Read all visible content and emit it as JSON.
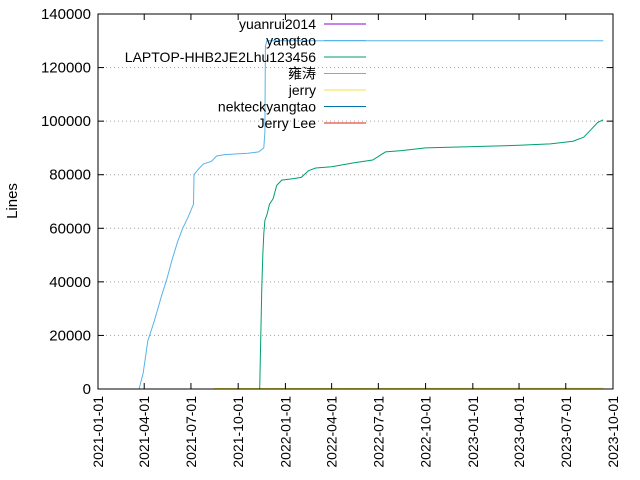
{
  "chart_data": {
    "type": "line",
    "title": "",
    "xlabel": "",
    "ylabel": "Lines",
    "xlim": [
      "2021-01-01",
      "2023-10-01"
    ],
    "ylim": [
      0,
      140000
    ],
    "y_ticks": [
      0,
      20000,
      40000,
      60000,
      80000,
      100000,
      120000,
      140000
    ],
    "x_ticks": [
      "2021-01-01",
      "2021-04-01",
      "2021-07-01",
      "2021-10-01",
      "2022-01-01",
      "2022-04-01",
      "2022-07-01",
      "2022-10-01",
      "2023-01-01",
      "2023-04-01",
      "2023-07-01",
      "2023-10-01"
    ],
    "grid": "horizontal dotted",
    "legend_position": "top-right",
    "series": [
      {
        "name": "yuanrui2014",
        "color": "#9400d3",
        "points": []
      },
      {
        "name": "yangtao",
        "color": "#56b4e9",
        "points": [
          [
            "2021-03-22",
            0
          ],
          [
            "2021-03-30",
            6000
          ],
          [
            "2021-04-08",
            18000
          ],
          [
            "2021-04-20",
            25000
          ],
          [
            "2021-05-05",
            35000
          ],
          [
            "2021-05-15",
            41000
          ],
          [
            "2021-05-25",
            48000
          ],
          [
            "2021-06-05",
            55000
          ],
          [
            "2021-06-15",
            60000
          ],
          [
            "2021-06-25",
            64000
          ],
          [
            "2021-07-06",
            69000
          ],
          [
            "2021-07-07",
            80000
          ],
          [
            "2021-07-15",
            82000
          ],
          [
            "2021-07-25",
            84000
          ],
          [
            "2021-08-10",
            85000
          ],
          [
            "2021-08-20",
            87000
          ],
          [
            "2021-09-05",
            87500
          ],
          [
            "2021-10-20",
            88000
          ],
          [
            "2021-11-10",
            88500
          ],
          [
            "2021-11-20",
            90000
          ],
          [
            "2021-11-22",
            96000
          ],
          [
            "2021-11-23",
            128000
          ],
          [
            "2021-11-26",
            130000
          ],
          [
            "2023-09-12",
            130000
          ]
        ]
      },
      {
        "name": "LAPTOP-HHB2JE2Lhu123456",
        "color": "#009e73",
        "points": []
      },
      {
        "name": "雍涛",
        "color": "#e69f00",
        "points": []
      },
      {
        "name": "jerry",
        "color": "#f0e442",
        "points": [
          [
            "2021-08-15",
            200
          ],
          [
            "2023-09-12",
            300
          ]
        ]
      },
      {
        "name": "nekteckyangtao",
        "color": "#0072b2",
        "points": []
      },
      {
        "name": "Jerry Lee",
        "color": "#e51e10",
        "points": []
      },
      {
        "name": "",
        "color": "#009e73",
        "points": [
          [
            "2021-11-12",
            0
          ],
          [
            "2021-11-14",
            20000
          ],
          [
            "2021-11-16",
            38000
          ],
          [
            "2021-11-18",
            50000
          ],
          [
            "2021-11-20",
            58000
          ],
          [
            "2021-11-22",
            63000
          ],
          [
            "2021-11-26",
            65000
          ],
          [
            "2021-12-01",
            69000
          ],
          [
            "2021-12-08",
            71000
          ],
          [
            "2021-12-15",
            76000
          ],
          [
            "2021-12-25",
            78000
          ],
          [
            "2022-01-15",
            78500
          ],
          [
            "2022-02-01",
            79000
          ],
          [
            "2022-02-15",
            81500
          ],
          [
            "2022-03-01",
            82500
          ],
          [
            "2022-04-01",
            83000
          ],
          [
            "2022-05-15",
            84500
          ],
          [
            "2022-06-20",
            85500
          ],
          [
            "2022-07-15",
            88500
          ],
          [
            "2022-08-15",
            89000
          ],
          [
            "2022-10-01",
            90000
          ],
          [
            "2023-01-01",
            90500
          ],
          [
            "2023-04-01",
            91000
          ],
          [
            "2023-06-01",
            91500
          ],
          [
            "2023-07-15",
            92500
          ],
          [
            "2023-08-05",
            94000
          ],
          [
            "2023-08-20",
            97000
          ],
          [
            "2023-09-01",
            99500
          ],
          [
            "2023-09-12",
            100500
          ]
        ]
      }
    ]
  }
}
